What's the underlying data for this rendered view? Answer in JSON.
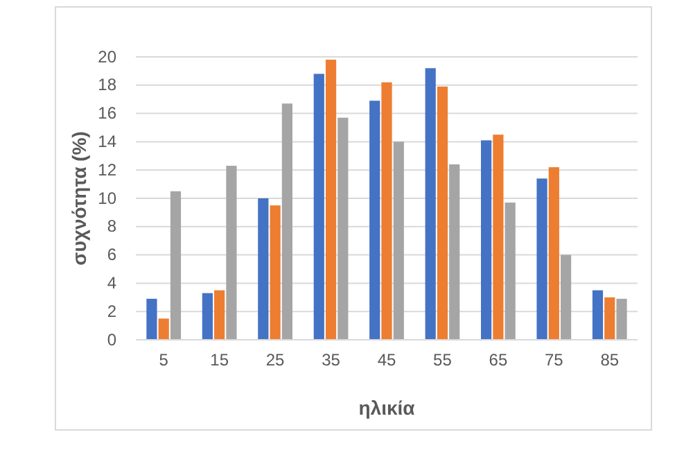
{
  "chart_data": {
    "type": "bar",
    "xlabel": "ηλικία",
    "ylabel": "συχνότητα (%)",
    "categories": [
      "5",
      "15",
      "25",
      "35",
      "45",
      "55",
      "65",
      "75",
      "85"
    ],
    "series": [
      {
        "color": "#4472c4",
        "values": [
          2.9,
          3.3,
          10.0,
          18.8,
          16.9,
          19.2,
          14.1,
          11.4,
          3.5
        ]
      },
      {
        "color": "#ed7d31",
        "values": [
          1.5,
          3.5,
          9.5,
          19.8,
          18.2,
          17.9,
          14.5,
          12.2,
          3.0
        ]
      },
      {
        "color": "#a5a5a5",
        "values": [
          10.5,
          12.3,
          16.7,
          15.7,
          14.0,
          12.4,
          9.7,
          6.0,
          2.9
        ]
      }
    ],
    "ylim": [
      0,
      20
    ],
    "yticks": [
      0,
      2,
      4,
      6,
      8,
      10,
      12,
      14,
      16,
      18,
      20
    ],
    "grid": "y"
  }
}
